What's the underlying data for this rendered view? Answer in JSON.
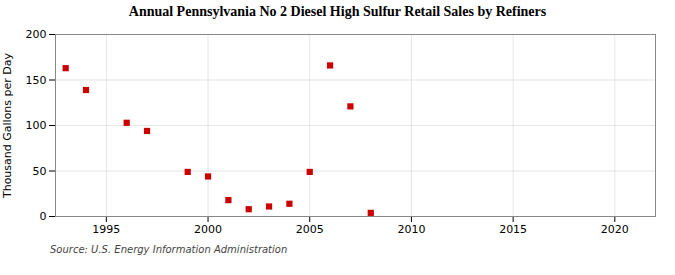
{
  "chart_data": {
    "type": "scatter",
    "title": "Annual Pennsylvania No 2 Diesel High Sulfur Retail Sales by Refiners",
    "ylabel": "Thousand Gallons per Day",
    "annotation": "Source: U.S. Energy Information Administration",
    "x": [
      1993,
      1994,
      1996,
      1997,
      1999,
      2000,
      2001,
      2002,
      2003,
      2004,
      2005,
      2006,
      2007,
      2008
    ],
    "values": [
      163,
      139,
      103,
      94,
      49,
      44,
      18,
      8,
      11,
      14,
      49,
      166,
      121,
      4
    ],
    "color": "#cc0000",
    "marker": "square",
    "xlim": [
      1992.5,
      2022
    ],
    "ylim": [
      0,
      200
    ],
    "xticks": [
      1995,
      2000,
      2005,
      2010,
      2015,
      2020
    ],
    "yticks": [
      0,
      50,
      100,
      150,
      200
    ],
    "grid": true
  }
}
